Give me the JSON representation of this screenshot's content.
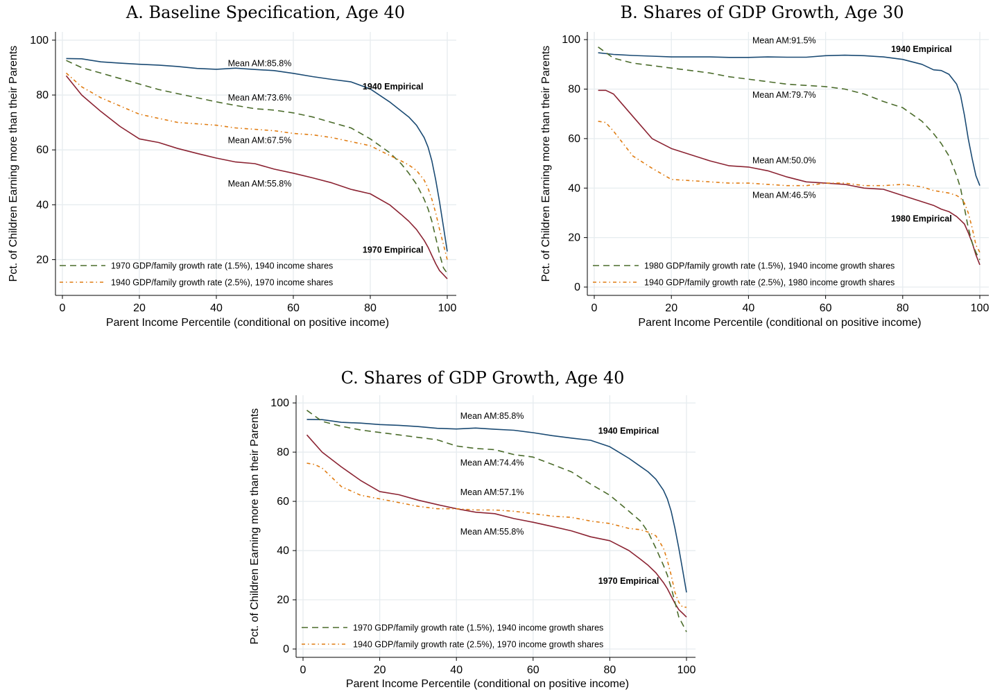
{
  "chart_data": [
    {
      "type": "line",
      "title": "A. Baseline Specification, Age 40",
      "xlabel": "Parent Income Percentile (conditional on positive income)",
      "ylabel": "Pct. of Children Earning more than their Parents",
      "xlim": [
        0,
        100
      ],
      "ylim": [
        10,
        102
      ],
      "xticks": [
        0,
        20,
        40,
        60,
        80,
        100
      ],
      "yticks": [
        20,
        40,
        60,
        80,
        100
      ],
      "grid": true,
      "legend_position": "bottom-left",
      "colors": {
        "empirical_1940": "#1a4a73",
        "empirical_1970": "#8b2332",
        "counterfactual_green": "#4a6b2a",
        "counterfactual_orange": "#e07b10"
      },
      "series": [
        {
          "id": "e1940",
          "style": "solid",
          "color": "#1a4a73",
          "x": [
            1,
            5,
            10,
            15,
            20,
            25,
            30,
            35,
            40,
            45,
            50,
            55,
            60,
            65,
            70,
            75,
            80,
            85,
            88,
            90,
            92,
            94,
            95,
            96,
            97,
            98,
            99,
            100
          ],
          "y": [
            93.3,
            93.2,
            92.1,
            91.6,
            91.2,
            90.9,
            90.4,
            89.7,
            89.4,
            89.8,
            89.3,
            88.9,
            87.9,
            86.7,
            85.7,
            84.8,
            82.2,
            77.5,
            74.2,
            72.0,
            69.0,
            64.5,
            61.0,
            56.0,
            49.0,
            41.0,
            32.0,
            23.0
          ]
        },
        {
          "id": "e1970",
          "style": "solid",
          "color": "#8b2332",
          "x": [
            1,
            5,
            10,
            15,
            20,
            25,
            30,
            35,
            40,
            45,
            50,
            55,
            60,
            65,
            70,
            75,
            80,
            85,
            88,
            90,
            92,
            94,
            95,
            96,
            97,
            98,
            99,
            100
          ],
          "y": [
            87.0,
            80.0,
            74.0,
            68.5,
            64.0,
            62.7,
            60.5,
            58.7,
            57.0,
            55.6,
            55.0,
            53.0,
            51.5,
            49.8,
            48.0,
            45.6,
            44.0,
            40.0,
            36.5,
            34.0,
            31.0,
            27.0,
            24.5,
            21.5,
            18.5,
            16.0,
            14.5,
            13.0
          ]
        },
        {
          "id": "cf_green",
          "style": "dash",
          "color": "#4a6b2a",
          "x": [
            1,
            5,
            10,
            15,
            20,
            25,
            30,
            35,
            40,
            45,
            50,
            55,
            60,
            65,
            70,
            75,
            80,
            85,
            88,
            90,
            92,
            94,
            95,
            96,
            97,
            98,
            99,
            100
          ],
          "y": [
            92.6,
            90.0,
            88.0,
            86.0,
            84.0,
            82.0,
            80.5,
            79.0,
            77.5,
            76.2,
            75.0,
            74.5,
            73.5,
            72.0,
            70.0,
            68.0,
            64.0,
            59.0,
            55.0,
            51.5,
            47.5,
            42.0,
            38.5,
            34.0,
            28.0,
            22.0,
            17.0,
            15.0
          ]
        },
        {
          "id": "cf_orange",
          "style": "dashdot",
          "color": "#e07b10",
          "x": [
            1,
            5,
            10,
            15,
            20,
            25,
            30,
            35,
            40,
            45,
            50,
            55,
            60,
            65,
            70,
            75,
            80,
            85,
            88,
            90,
            92,
            94,
            95,
            96,
            97,
            98,
            99,
            100
          ],
          "y": [
            88.0,
            83.0,
            79.0,
            76.0,
            73.0,
            71.5,
            70.0,
            69.5,
            69.0,
            68.0,
            67.5,
            67.0,
            66.0,
            65.5,
            64.5,
            63.0,
            61.5,
            58.0,
            56.0,
            54.5,
            52.5,
            49.0,
            46.0,
            42.0,
            37.0,
            31.0,
            25.5,
            20.0
          ]
        }
      ],
      "annotations": [
        {
          "text": "Mean AM:85.8%",
          "x": 43,
          "y": 90.5,
          "bold": false
        },
        {
          "text": "Mean AM:73.6%",
          "x": 43,
          "y": 78.0,
          "bold": false
        },
        {
          "text": "Mean AM:67.5%",
          "x": 43,
          "y": 62.5,
          "bold": false
        },
        {
          "text": "Mean AM:55.8%",
          "x": 43,
          "y": 46.6,
          "bold": false
        },
        {
          "text": "1940 Empirical",
          "x": 78,
          "y": 82.0,
          "bold": true
        },
        {
          "text": "1970 Empirical",
          "x": 78,
          "y": 22.5,
          "bold": true
        }
      ],
      "legend": [
        {
          "series": "cf_green",
          "label": "1970 GDP/family growth rate (1.5%), 1940 income shares"
        },
        {
          "series": "cf_orange",
          "label": "1940 GDP/family growth rate (2.5%), 1970 income shares"
        }
      ]
    },
    {
      "type": "line",
      "title": "B. Shares of GDP Growth, Age 30",
      "xlabel": "Parent Income Percentile (conditional on positive income)",
      "ylabel": "Pct. of Children Earning more than their Parents",
      "xlim": [
        0,
        100
      ],
      "ylim": [
        0,
        102
      ],
      "xticks": [
        0,
        20,
        40,
        60,
        80,
        100
      ],
      "yticks": [
        0,
        20,
        40,
        60,
        80,
        100
      ],
      "grid": true,
      "legend_position": "bottom-left",
      "series": [
        {
          "id": "e1940",
          "style": "solid",
          "color": "#1a4a73",
          "x": [
            1,
            5,
            10,
            15,
            20,
            25,
            30,
            35,
            40,
            45,
            50,
            55,
            60,
            65,
            70,
            75,
            80,
            85,
            88,
            90,
            92,
            94,
            95,
            96,
            97,
            98,
            99,
            100
          ],
          "y": [
            94.7,
            94.0,
            93.6,
            93.3,
            93.0,
            93.0,
            93.0,
            92.8,
            92.8,
            93.0,
            92.9,
            92.9,
            93.5,
            93.7,
            93.5,
            93.0,
            92.0,
            90.0,
            87.8,
            87.5,
            86.0,
            82.0,
            77.5,
            69.5,
            60.0,
            52.0,
            45.0,
            41.0
          ]
        },
        {
          "id": "e1980",
          "style": "solid",
          "color": "#8b2332",
          "x": [
            1,
            3,
            5,
            10,
            15,
            20,
            25,
            30,
            35,
            40,
            45,
            50,
            55,
            60,
            65,
            70,
            75,
            80,
            85,
            88,
            90,
            92,
            94,
            95,
            96,
            97,
            98,
            99,
            100
          ],
          "y": [
            79.5,
            79.5,
            78.0,
            69.0,
            60.0,
            56.0,
            53.5,
            51.0,
            49.0,
            48.5,
            47.0,
            44.5,
            42.5,
            42.0,
            41.5,
            40.0,
            39.5,
            37.0,
            34.5,
            33.0,
            31.5,
            30.5,
            28.5,
            27.0,
            25.5,
            22.0,
            18.0,
            13.0,
            9.0
          ]
        },
        {
          "id": "cf_green",
          "style": "dash",
          "color": "#4a6b2a",
          "x": [
            1,
            5,
            10,
            15,
            20,
            25,
            30,
            35,
            40,
            45,
            50,
            55,
            60,
            65,
            70,
            75,
            80,
            85,
            88,
            90,
            92,
            94,
            95,
            96,
            97,
            98,
            99,
            100
          ],
          "y": [
            97.0,
            92.5,
            90.5,
            89.5,
            88.5,
            87.5,
            86.5,
            85.0,
            84.0,
            83.0,
            82.0,
            81.5,
            81.0,
            80.0,
            78.0,
            75.0,
            72.5,
            67.0,
            62.0,
            58.0,
            53.0,
            45.0,
            40.0,
            32.0,
            24.0,
            18.0,
            14.0,
            11.0
          ]
        },
        {
          "id": "cf_orange",
          "style": "dashdot",
          "color": "#e07b10",
          "x": [
            1,
            3,
            5,
            10,
            15,
            20,
            25,
            30,
            35,
            40,
            45,
            50,
            55,
            60,
            65,
            70,
            75,
            80,
            85,
            88,
            90,
            92,
            94,
            95,
            96,
            97,
            98,
            99,
            100
          ],
          "y": [
            67.0,
            66.5,
            63.0,
            53.0,
            48.0,
            43.5,
            43.0,
            42.5,
            42.0,
            42.0,
            41.5,
            41.0,
            41.0,
            42.0,
            42.0,
            41.0,
            41.0,
            41.5,
            40.5,
            39.0,
            38.5,
            38.0,
            37.0,
            36.0,
            34.0,
            30.0,
            24.0,
            17.0,
            14.0
          ]
        }
      ],
      "annotations": [
        {
          "text": "Mean AM:91.5%",
          "x": 41,
          "y": 98.5,
          "bold": false
        },
        {
          "text": "Mean AM:79.7%",
          "x": 41,
          "y": 76.5,
          "bold": false
        },
        {
          "text": "Mean AM:50.0%",
          "x": 41,
          "y": 50.0,
          "bold": false
        },
        {
          "text": "Mean AM:46.5%",
          "x": 41,
          "y": 36.0,
          "bold": false
        },
        {
          "text": "1940 Empirical",
          "x": 77,
          "y": 95.0,
          "bold": true
        },
        {
          "text": "1980 Empirical",
          "x": 77,
          "y": 26.5,
          "bold": true
        }
      ],
      "legend": [
        {
          "series": "cf_green",
          "label": "1980 GDP/family growth rate (1.5%), 1940 income growth shares"
        },
        {
          "series": "cf_orange",
          "label": "1940 GDP/family growth rate (2.5%), 1980 income growth shares"
        }
      ]
    },
    {
      "type": "line",
      "title": "C. Shares of GDP Growth, Age 40",
      "xlabel": "Parent Income Percentile (conditional on positive income)",
      "ylabel": "Pct. of Children Earning more than their Parents",
      "xlim": [
        0,
        100
      ],
      "ylim": [
        0,
        102
      ],
      "xticks": [
        0,
        20,
        40,
        60,
        80,
        100
      ],
      "yticks": [
        0,
        20,
        40,
        60,
        80,
        100
      ],
      "grid": true,
      "legend_position": "bottom-left",
      "series": [
        {
          "id": "e1940",
          "style": "solid",
          "color": "#1a4a73",
          "x": [
            1,
            5,
            10,
            15,
            20,
            25,
            30,
            35,
            40,
            45,
            50,
            55,
            60,
            65,
            70,
            75,
            80,
            85,
            88,
            90,
            92,
            94,
            95,
            96,
            97,
            98,
            99,
            100
          ],
          "y": [
            93.3,
            93.2,
            92.1,
            91.8,
            91.2,
            90.9,
            90.4,
            89.7,
            89.4,
            89.8,
            89.3,
            88.9,
            87.9,
            86.7,
            85.7,
            84.8,
            82.2,
            77.5,
            74.2,
            72.0,
            69.0,
            64.5,
            61.0,
            56.0,
            49.0,
            41.0,
            32.0,
            23.0
          ]
        },
        {
          "id": "e1970",
          "style": "solid",
          "color": "#8b2332",
          "x": [
            1,
            5,
            10,
            15,
            20,
            25,
            30,
            35,
            40,
            45,
            50,
            55,
            60,
            65,
            70,
            75,
            80,
            85,
            88,
            90,
            92,
            94,
            95,
            96,
            97,
            98,
            99,
            100
          ],
          "y": [
            87.0,
            80.0,
            74.0,
            68.5,
            64.0,
            62.7,
            60.5,
            58.7,
            57.0,
            55.6,
            55.0,
            53.0,
            51.5,
            49.8,
            48.0,
            45.6,
            44.0,
            40.0,
            36.5,
            34.0,
            31.0,
            27.0,
            24.5,
            21.5,
            18.5,
            16.0,
            14.5,
            13.0
          ]
        },
        {
          "id": "cf_green",
          "style": "dash",
          "color": "#4a6b2a",
          "x": [
            1,
            5,
            10,
            15,
            20,
            25,
            30,
            35,
            40,
            45,
            50,
            55,
            60,
            65,
            70,
            75,
            80,
            85,
            88,
            90,
            92,
            94,
            95,
            96,
            97,
            98,
            99,
            100
          ],
          "y": [
            97.0,
            92.5,
            90.5,
            89.0,
            88.0,
            87.0,
            86.0,
            85.0,
            82.5,
            81.5,
            81.0,
            79.0,
            78.0,
            75.0,
            72.0,
            67.0,
            62.5,
            56.0,
            52.0,
            47.5,
            41.0,
            34.0,
            30.0,
            25.0,
            19.0,
            13.0,
            10.0,
            7.0
          ]
        },
        {
          "id": "cf_orange",
          "style": "dashdot",
          "color": "#e07b10",
          "x": [
            1,
            3,
            5,
            10,
            15,
            20,
            25,
            30,
            35,
            40,
            45,
            50,
            55,
            60,
            65,
            70,
            75,
            80,
            85,
            88,
            90,
            92,
            94,
            95,
            96,
            97,
            98,
            99,
            100
          ],
          "y": [
            75.5,
            75.0,
            73.5,
            66.0,
            62.5,
            61.0,
            59.5,
            58.0,
            57.0,
            57.0,
            56.5,
            56.5,
            56.0,
            55.0,
            54.0,
            53.5,
            52.0,
            51.0,
            49.0,
            48.5,
            47.5,
            46.0,
            41.0,
            36.0,
            30.0,
            23.0,
            19.0,
            17.0,
            17.0
          ]
        }
      ],
      "annotations": [
        {
          "text": "Mean AM:85.8%",
          "x": 41,
          "y": 93.5,
          "bold": false
        },
        {
          "text": "Mean AM:74.4%",
          "x": 41,
          "y": 74.5,
          "bold": false
        },
        {
          "text": "Mean AM:57.1%",
          "x": 41,
          "y": 62.5,
          "bold": false
        },
        {
          "text": "Mean AM:55.8%",
          "x": 41,
          "y": 46.5,
          "bold": false
        },
        {
          "text": "1940 Empirical",
          "x": 77,
          "y": 87.5,
          "bold": true
        },
        {
          "text": "1970 Empirical",
          "x": 77,
          "y": 26.5,
          "bold": true
        }
      ],
      "legend": [
        {
          "series": "cf_green",
          "label": "1970 GDP/family growth rate (1.5%), 1940 income growth shares"
        },
        {
          "series": "cf_orange",
          "label": "1940 GDP/family growth rate (2.5%), 1970 income growth shares"
        }
      ]
    }
  ]
}
